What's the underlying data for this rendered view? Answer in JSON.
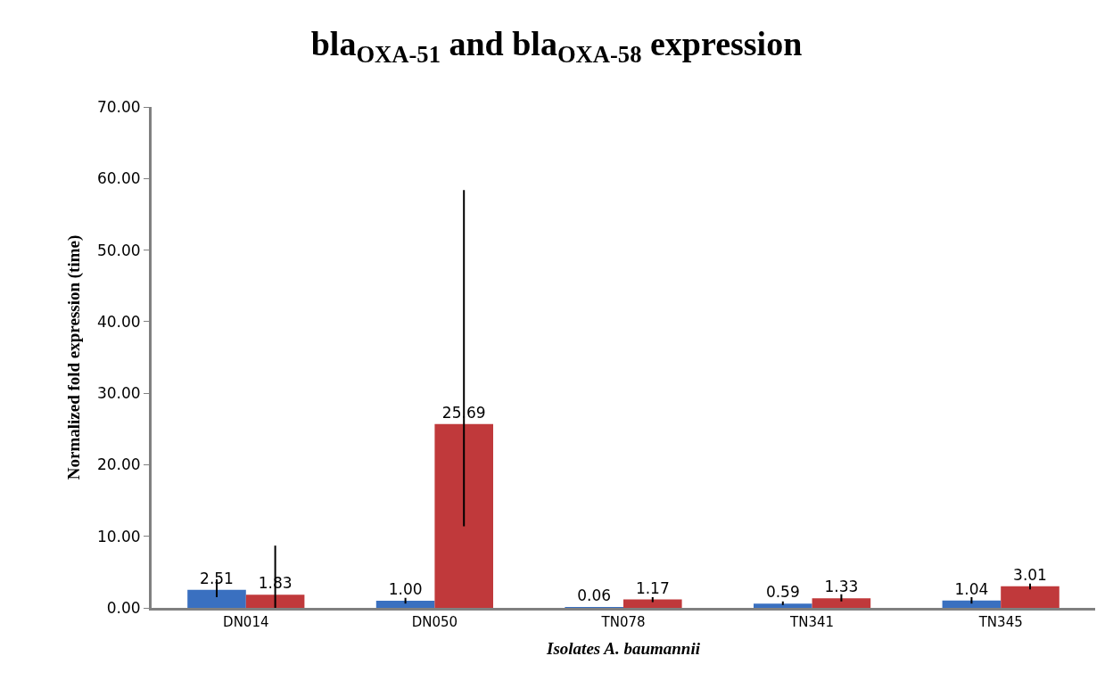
{
  "chart_data": {
    "type": "bar",
    "title": "bla$_{OXA-51}$ and bla$_{OXA-58}$ expression",
    "xlabel": "Isolates A. baumannii",
    "ylabel": "Normalized fold expression (time)",
    "categories": [
      "DN014",
      "DN050",
      "TN078",
      "TN341",
      "TN345"
    ],
    "series": [
      {
        "color": "#3a70c0",
        "values": [
          2.51,
          1.0,
          0.06,
          0.59,
          1.04
        ],
        "value_labels": [
          "2.51",
          "1.00",
          "0.06",
          "0.59",
          "1.04"
        ],
        "errors": [
          [
            1.5,
            4.0
          ],
          [
            0.6,
            1.4
          ],
          null,
          [
            0.4,
            0.9
          ],
          [
            0.6,
            1.5
          ]
        ]
      },
      {
        "color": "#c0393b",
        "values": [
          1.83,
          25.69,
          1.17,
          1.33,
          3.01
        ],
        "value_labels": [
          "1.83",
          "25.69",
          "1.17",
          "1.33",
          "3.01"
        ],
        "errors": [
          [
            0,
            8.7
          ],
          [
            11.4,
            58.4
          ],
          [
            0.8,
            1.5
          ],
          [
            0.9,
            1.9
          ],
          [
            2.6,
            3.4
          ]
        ]
      }
    ],
    "ylim": [
      0,
      70
    ],
    "yticks": [
      {
        "value": 0,
        "label": "0.00"
      },
      {
        "value": 10,
        "label": "10.00"
      },
      {
        "value": 20,
        "label": "20.00"
      },
      {
        "value": 30,
        "label": "30.00"
      },
      {
        "value": 40,
        "label": "40.00"
      },
      {
        "value": 50,
        "label": "50.00"
      },
      {
        "value": 60,
        "label": "60.00"
      },
      {
        "value": 70,
        "label": "70.00"
      }
    ]
  }
}
